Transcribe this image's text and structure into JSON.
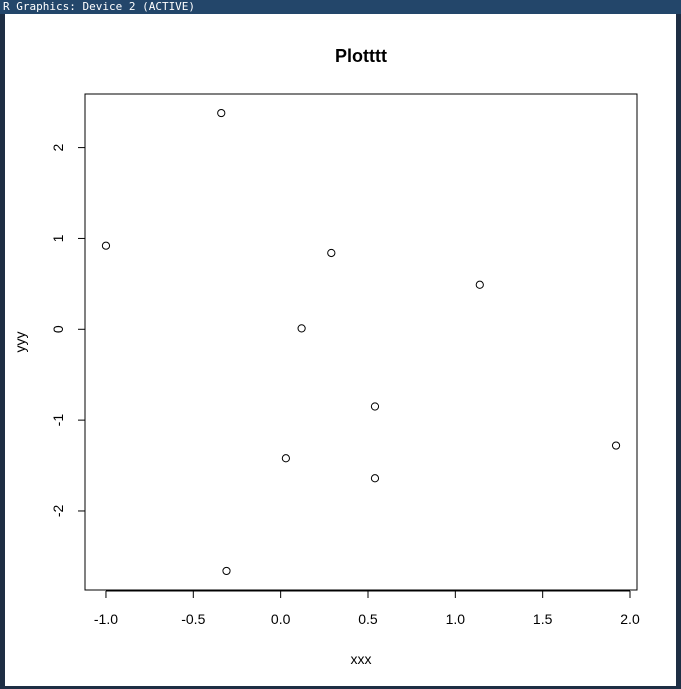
{
  "window": {
    "title": "R Graphics: Device 2 (ACTIVE)"
  },
  "colors": {
    "titlebar": "#23466a",
    "frame": "#1e2e44",
    "plot": "#000000",
    "background": "#ffffff"
  },
  "chart_data": {
    "type": "scatter",
    "title": "Plotttt",
    "xlabel": "xxx",
    "ylabel": "yyy",
    "xlim": [
      -1.12,
      2.04
    ],
    "ylim": [
      -2.87,
      2.59
    ],
    "xticks": [
      -1.0,
      -0.5,
      0.0,
      0.5,
      1.0,
      1.5,
      2.0
    ],
    "xtick_labels": [
      "-1.0",
      "-0.5",
      "0.0",
      "0.5",
      "1.0",
      "1.5",
      "2.0"
    ],
    "yticks": [
      -2,
      -1,
      0,
      1,
      2
    ],
    "ytick_labels": [
      "-2",
      "-1",
      "0",
      "1",
      "2"
    ],
    "grid": false,
    "marker": "open-circle",
    "points": [
      {
        "x": -1.0,
        "y": 0.92
      },
      {
        "x": -0.34,
        "y": 2.38
      },
      {
        "x": -0.31,
        "y": -2.66
      },
      {
        "x": 0.03,
        "y": -1.42
      },
      {
        "x": 0.12,
        "y": 0.01
      },
      {
        "x": 0.29,
        "y": 0.84
      },
      {
        "x": 0.54,
        "y": -0.85
      },
      {
        "x": 0.54,
        "y": -1.64
      },
      {
        "x": 1.14,
        "y": 0.49
      },
      {
        "x": 1.92,
        "y": -1.28
      }
    ]
  }
}
